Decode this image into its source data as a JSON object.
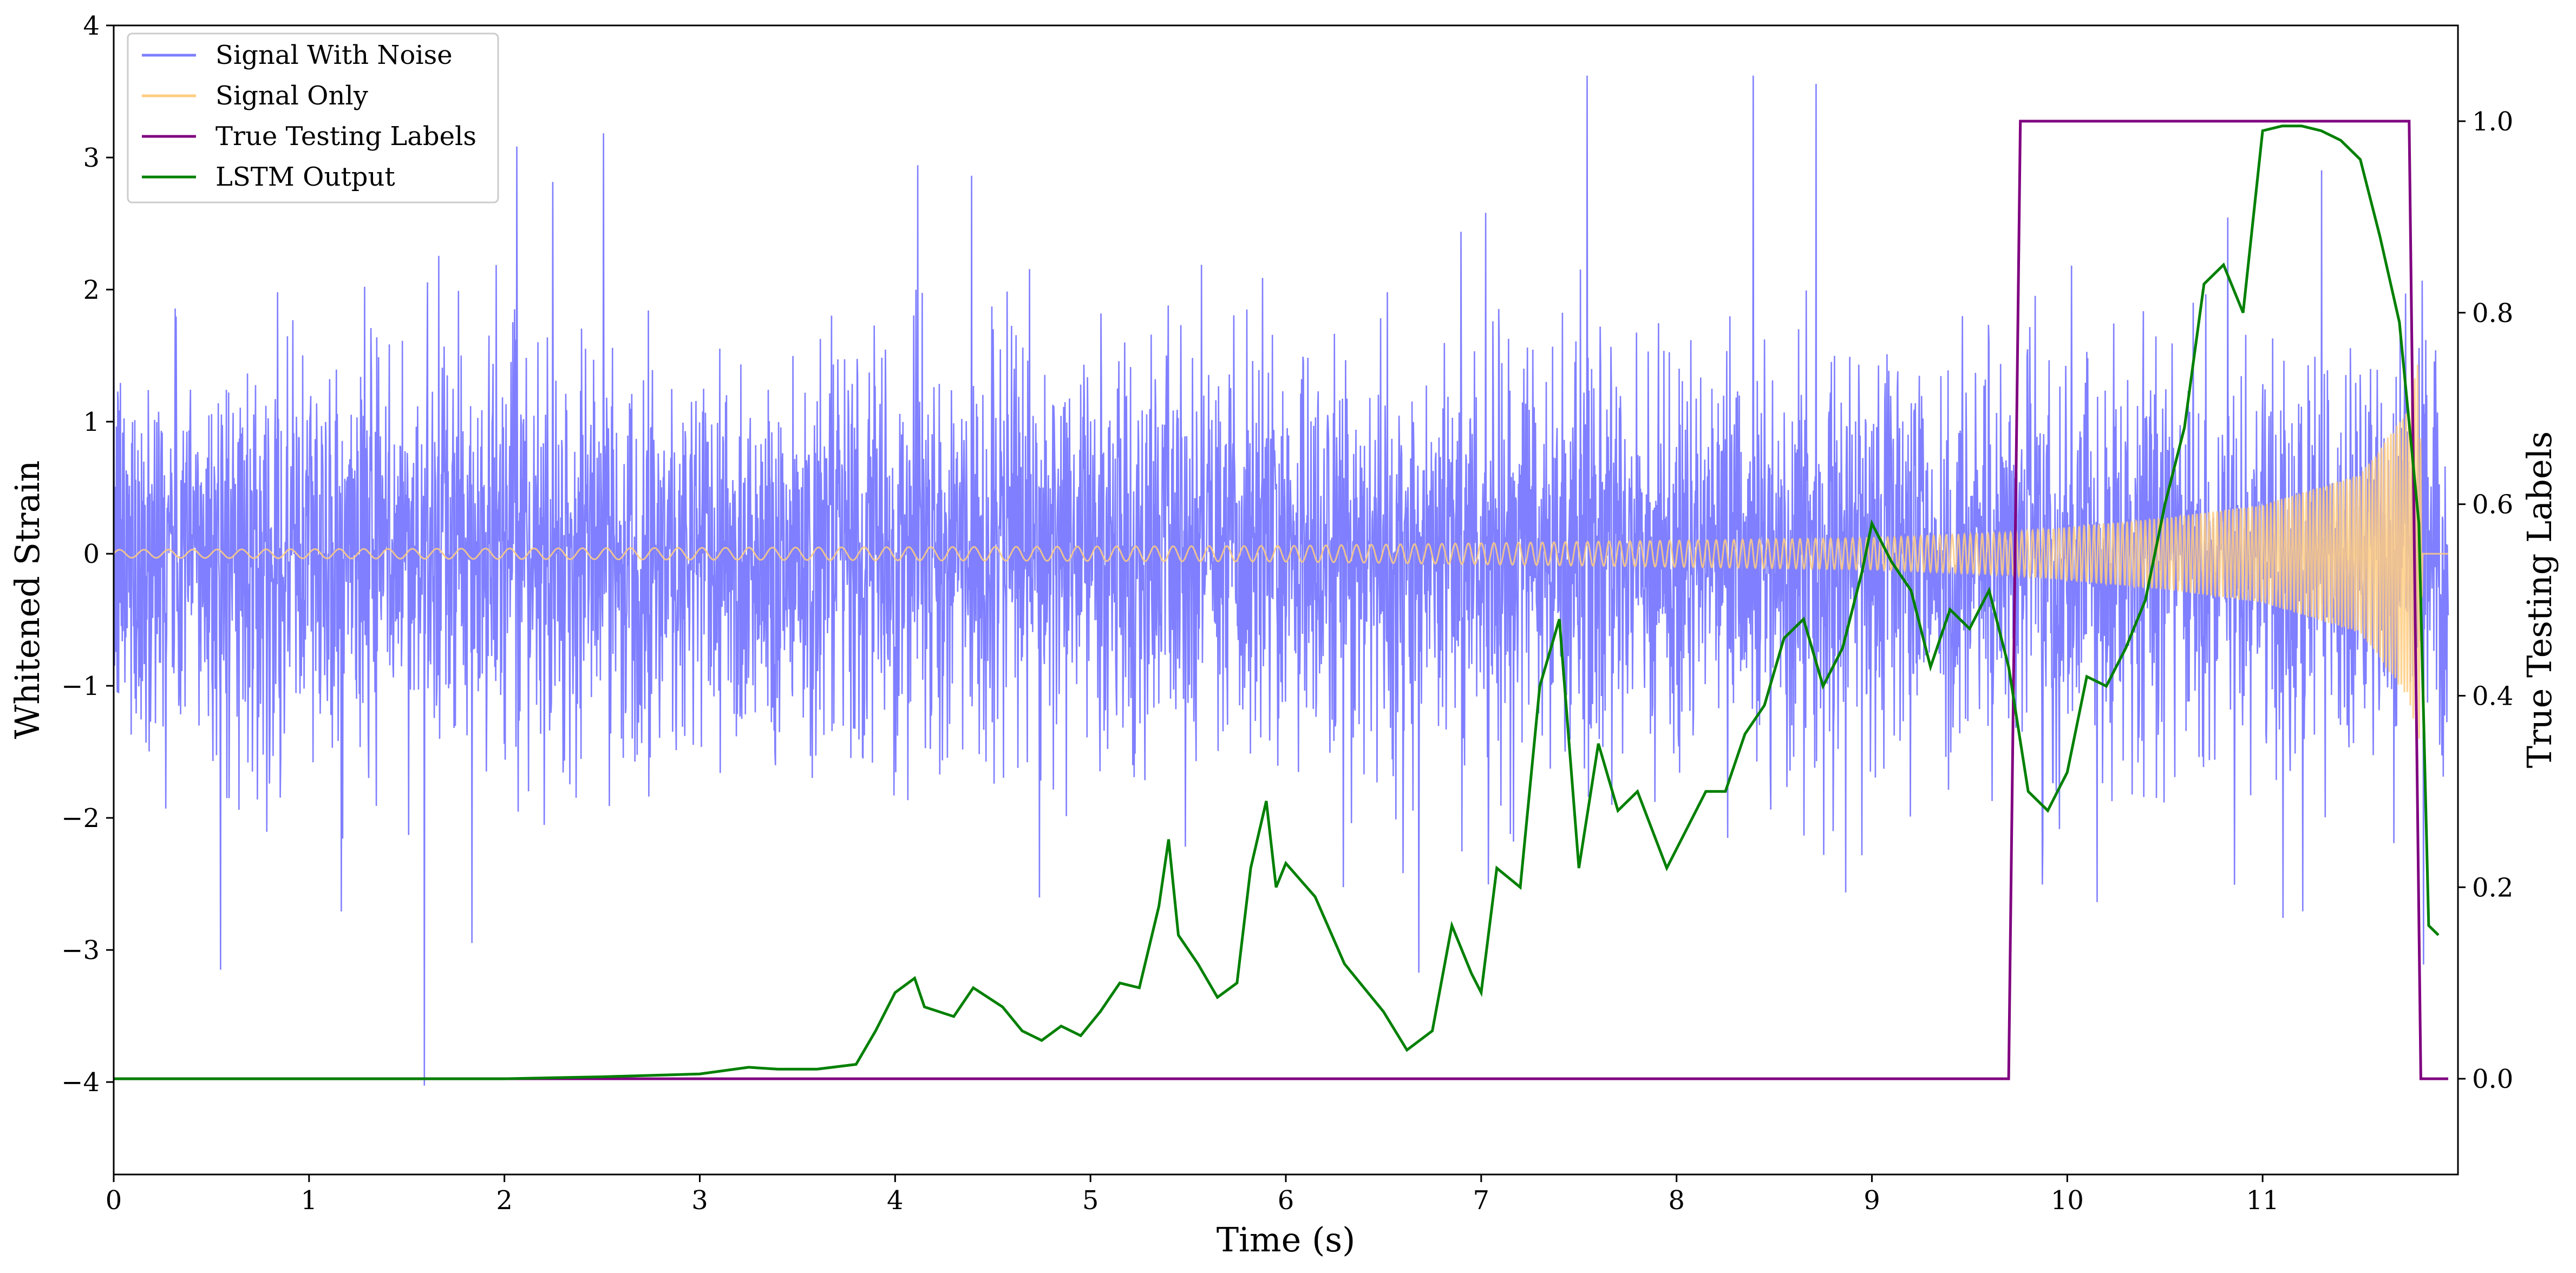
{
  "chart_data": {
    "type": "line",
    "xlabel": "Time (s)",
    "ylabel_left": "Whitened Strain",
    "ylabel_right": "True Testing Labels",
    "xlim": [
      0,
      12
    ],
    "ylim_left": [
      -4.7,
      4.0
    ],
    "ylim_right": [
      -0.1,
      1.1
    ],
    "x_ticks": [
      "0",
      "1",
      "2",
      "3",
      "4",
      "5",
      "6",
      "7",
      "8",
      "9",
      "10",
      "11"
    ],
    "y_left_ticks": [
      "−4",
      "−3",
      "−2",
      "−1",
      "0",
      "1",
      "2",
      "3",
      "4"
    ],
    "y_right_ticks": [
      "0.0",
      "0.2",
      "0.4",
      "0.6",
      "0.8",
      "1.0"
    ],
    "grid": false,
    "legend_position": "upper-left",
    "legend": [
      {
        "label": "Signal With Noise",
        "color": "#7f7fff"
      },
      {
        "label": "Signal Only",
        "color": "#ffcc80"
      },
      {
        "label": "True Testing Labels",
        "color": "#800080"
      },
      {
        "label": "LSTM Output",
        "color": "#008000"
      }
    ],
    "series": [
      {
        "name": "Signal With Noise",
        "axis": "left",
        "color": "#7f7fff",
        "description_values": {
          "mean": 0.0,
          "std": 0.75,
          "max_spike": 3.62,
          "min_spike": -4.25
        }
      },
      {
        "name": "Signal Only",
        "axis": "left",
        "color": "#ffcc80",
        "envelope": {
          "x": [
            0,
            2,
            4,
            6,
            8,
            9,
            9.7,
            10,
            10.5,
            11,
            11.5,
            11.75,
            11.8,
            11.82,
            12
          ],
          "amp": [
            0.03,
            0.04,
            0.05,
            0.06,
            0.1,
            0.12,
            0.16,
            0.2,
            0.27,
            0.37,
            0.6,
            1.1,
            1.5,
            0.0,
            0.0
          ]
        }
      },
      {
        "name": "True Testing Labels",
        "axis": "right",
        "color": "#800080",
        "x": [
          0,
          9.7,
          9.76,
          11.75,
          11.81,
          11.95
        ],
        "y": [
          0,
          0,
          1,
          1,
          0,
          0
        ]
      },
      {
        "name": "LSTM Output",
        "axis": "right",
        "color": "#008000",
        "x": [
          0,
          1,
          2,
          2.5,
          3,
          3.25,
          3.4,
          3.6,
          3.8,
          3.9,
          4.0,
          4.1,
          4.15,
          4.3,
          4.4,
          4.55,
          4.65,
          4.75,
          4.85,
          4.95,
          5.05,
          5.15,
          5.25,
          5.35,
          5.4,
          5.45,
          5.55,
          5.65,
          5.75,
          5.82,
          5.9,
          5.95,
          6.0,
          6.15,
          6.3,
          6.5,
          6.62,
          6.75,
          6.85,
          6.95,
          7.0,
          7.08,
          7.2,
          7.3,
          7.4,
          7.5,
          7.6,
          7.7,
          7.8,
          7.95,
          8.05,
          8.15,
          8.25,
          8.35,
          8.45,
          8.55,
          8.65,
          8.75,
          8.85,
          8.95,
          9.0,
          9.1,
          9.2,
          9.3,
          9.4,
          9.5,
          9.6,
          9.7,
          9.8,
          9.9,
          10.0,
          10.1,
          10.2,
          10.3,
          10.4,
          10.5,
          10.6,
          10.7,
          10.8,
          10.9,
          11.0,
          11.1,
          11.2,
          11.3,
          11.4,
          11.5,
          11.6,
          11.7,
          11.8,
          11.85,
          11.9
        ],
        "y": [
          0.0,
          0.0,
          0.0,
          0.002,
          0.005,
          0.012,
          0.01,
          0.01,
          0.015,
          0.05,
          0.09,
          0.105,
          0.075,
          0.065,
          0.095,
          0.075,
          0.05,
          0.04,
          0.055,
          0.045,
          0.07,
          0.1,
          0.095,
          0.18,
          0.25,
          0.15,
          0.12,
          0.085,
          0.1,
          0.22,
          0.29,
          0.2,
          0.225,
          0.19,
          0.12,
          0.07,
          0.03,
          0.05,
          0.16,
          0.11,
          0.09,
          0.22,
          0.2,
          0.41,
          0.48,
          0.22,
          0.35,
          0.28,
          0.3,
          0.22,
          0.26,
          0.3,
          0.3,
          0.36,
          0.39,
          0.46,
          0.48,
          0.41,
          0.45,
          0.53,
          0.58,
          0.54,
          0.51,
          0.43,
          0.49,
          0.47,
          0.51,
          0.43,
          0.3,
          0.28,
          0.32,
          0.42,
          0.41,
          0.45,
          0.5,
          0.6,
          0.68,
          0.83,
          0.85,
          0.8,
          0.99,
          0.995,
          0.995,
          0.99,
          0.98,
          0.96,
          0.88,
          0.79,
          0.58,
          0.16,
          0.15
        ]
      }
    ]
  }
}
